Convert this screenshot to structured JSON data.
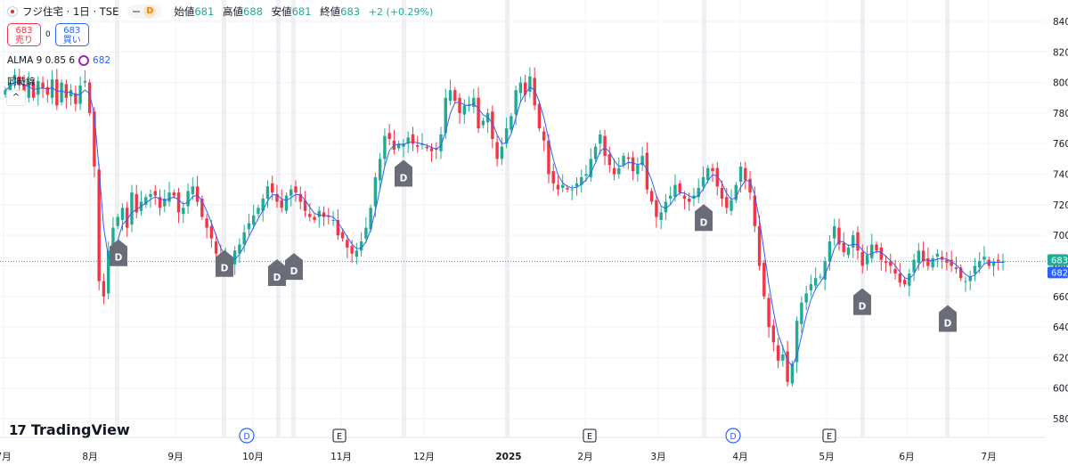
{
  "header": {
    "title": "フジ住宅 · 1日 · TSE",
    "interval_badge": "D",
    "ohlc": [
      {
        "label": "始値",
        "value": "681"
      },
      {
        "label": "高値",
        "value": "688"
      },
      {
        "label": "安値",
        "value": "681"
      },
      {
        "label": "終値",
        "value": "683"
      }
    ],
    "change": "+2 (+0.29%)"
  },
  "trade": {
    "sell_price": "683",
    "sell_label": "売り",
    "spread": "0",
    "buy_price": "683",
    "buy_label": "買い"
  },
  "indicators": {
    "alma_label": "ALMA 9 0.85 6",
    "alma_value": "682",
    "second_label": "同時線",
    "collapse_glyph": "^"
  },
  "logo": {
    "text": "TradingView"
  },
  "colors": {
    "up": "#22ab94",
    "down": "#f23645",
    "alma": "#2962ff",
    "grid": "#f0f3fa",
    "marker": "#6a6d78"
  },
  "chart_data": {
    "type": "candlestick",
    "symbol": "フジ住宅",
    "y_range": [
      570,
      845
    ],
    "y_ticks": [
      "840",
      "820",
      "800",
      "780",
      "760",
      "740",
      "720",
      "700",
      "680",
      "660",
      "640",
      "620",
      "600",
      "580"
    ],
    "x_ticks": [
      "7月",
      "8月",
      "9月",
      "10月",
      "11月",
      "12月",
      "2025",
      "2月",
      "3月",
      "4月",
      "5月",
      "6月",
      "7月"
    ],
    "current_price": "683",
    "alma_last": "682",
    "dividend_markers": [
      "D",
      "D",
      "D",
      "D",
      "D",
      "D",
      "D",
      "D"
    ],
    "earnings_markers": [
      "D",
      "E",
      "E",
      "D",
      "E"
    ],
    "close_series": [
      795,
      800,
      805,
      798,
      792,
      800,
      790,
      801,
      796,
      792,
      802,
      785,
      800,
      790,
      795,
      786,
      798,
      801,
      780,
      745,
      670,
      660,
      690,
      705,
      712,
      718,
      705,
      728,
      715,
      722,
      725,
      727,
      726,
      718,
      724,
      728,
      726,
      715,
      718,
      729,
      732,
      722,
      712,
      705,
      698,
      688,
      680,
      685,
      680,
      690,
      694,
      702,
      708,
      713,
      718,
      724,
      732,
      728,
      722,
      718,
      726,
      730,
      728,
      722,
      716,
      712,
      710,
      716,
      712,
      712,
      710,
      700,
      698,
      692,
      688,
      690,
      696,
      705,
      718,
      738,
      750,
      765,
      763,
      756,
      760,
      760,
      764,
      760,
      758,
      760,
      757,
      755,
      756,
      766,
      790,
      795,
      788,
      780,
      785,
      786,
      790,
      770,
      775,
      780,
      763,
      750,
      758,
      770,
      778,
      795,
      800,
      792,
      804,
      785,
      770,
      762,
      740,
      734,
      730,
      733,
      730,
      730,
      734,
      738,
      740,
      750,
      758,
      766,
      752,
      746,
      740,
      744,
      752,
      750,
      742,
      746,
      752,
      730,
      722,
      712,
      715,
      722,
      726,
      733,
      728,
      724,
      722,
      726,
      731,
      738,
      744,
      742,
      732,
      724,
      718,
      723,
      733,
      745,
      736,
      728,
      706,
      680,
      660,
      640,
      630,
      618,
      622,
      604,
      616,
      644,
      656,
      662,
      668,
      672,
      673,
      683,
      696,
      706,
      694,
      689,
      692,
      700,
      690,
      680,
      687,
      694,
      690,
      684,
      682,
      680,
      675,
      669,
      668,
      675,
      684,
      690,
      683,
      680,
      685,
      688,
      684,
      682,
      680,
      678,
      672,
      670,
      673,
      680,
      683,
      686,
      680,
      682,
      683,
      683
    ]
  }
}
